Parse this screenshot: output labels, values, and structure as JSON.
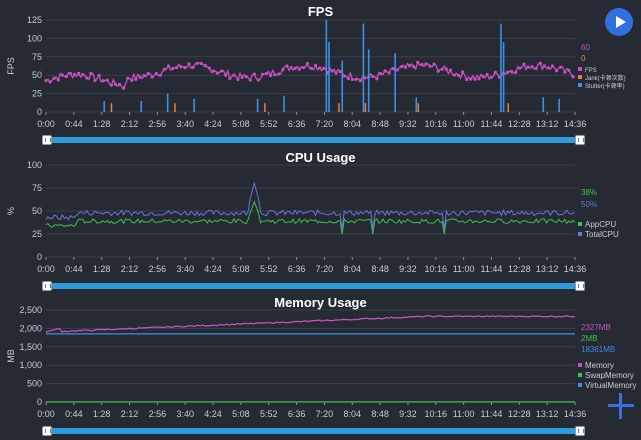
{
  "chart_data": [
    {
      "type": "line",
      "title": "FPS",
      "ylabel": "FPS",
      "ylim": [
        0,
        125
      ],
      "yticks": [
        0,
        25,
        50,
        75,
        100,
        125
      ],
      "x_tick_labels": [
        "0:00",
        "0:44",
        "1:28",
        "2:12",
        "2:56",
        "3:40",
        "4:24",
        "5:08",
        "5:52",
        "6:36",
        "7:20",
        "8:04",
        "8:48",
        "9:32",
        "10:16",
        "11:00",
        "11:44",
        "12:28",
        "13:12",
        "14:36"
      ],
      "grid": true,
      "legend_position": "right",
      "series": [
        {
          "name": "FPS",
          "color": "#c94fc0",
          "current": "60",
          "summary": "~55–65, wavy"
        },
        {
          "name": "Jank(卡顿次数)",
          "color": "#e8823a",
          "current": "0"
        },
        {
          "name": "Stutter(卡顿率)",
          "color": "#3e8fe8",
          "current": "",
          "spikes": [
            {
              "t": "7:35",
              "value": 125
            },
            {
              "t": "8:20",
              "value": 120
            },
            {
              "t": "9:45",
              "value": 80
            },
            {
              "t": "12:40",
              "value": 120
            },
            {
              "t": "8:00",
              "value": 60
            }
          ]
        }
      ],
      "current_labels": [
        "60",
        "0"
      ]
    },
    {
      "type": "line",
      "title": "CPU Usage",
      "ylabel": "%",
      "ylim": [
        0,
        100
      ],
      "yticks": [
        0,
        25,
        50,
        75,
        100
      ],
      "x_tick_labels": [
        "0:00",
        "0:44",
        "1:28",
        "2:12",
        "2:56",
        "3:40",
        "4:24",
        "5:08",
        "5:52",
        "6:36",
        "7:20",
        "8:04",
        "8:48",
        "9:32",
        "10:16",
        "11:00",
        "11:44",
        "12:28",
        "13:12",
        "14:36"
      ],
      "grid": true,
      "legend_position": "right",
      "series": [
        {
          "name": "AppCPU",
          "color": "#3cc24a",
          "current": "38%"
        },
        {
          "name": "TotalCPU",
          "color": "#6a73e0",
          "current": "50%"
        }
      ]
    },
    {
      "type": "line",
      "title": "Memory Usage",
      "ylabel": "MB",
      "ylim": [
        0,
        2500
      ],
      "yticks": [
        0,
        500,
        1000,
        1500,
        2000,
        2500
      ],
      "ytick_labels": [
        "0",
        "500",
        "1,000",
        "1,500",
        "2,000",
        "2,500"
      ],
      "x_tick_labels": [
        "0:00",
        "0:44",
        "1:28",
        "2:12",
        "2:56",
        "3:40",
        "4:24",
        "5:08",
        "5:52",
        "6:36",
        "7:20",
        "8:04",
        "8:48",
        "9:32",
        "10:16",
        "11:00",
        "11:44",
        "12:28",
        "13:12",
        "14:36"
      ],
      "grid": true,
      "legend_position": "right",
      "series": [
        {
          "name": "Memory",
          "color": "#c94fc0",
          "current": "2327MB",
          "start": 1900,
          "end": 2327
        },
        {
          "name": "SwapMemory",
          "color": "#3cc24a",
          "current": "2MB",
          "value": 2
        },
        {
          "name": "VirtualMemory",
          "color": "#3e8fe8",
          "current": "18361MB"
        }
      ]
    }
  ],
  "ui": {
    "play_button": "play",
    "add_button": "add",
    "colors": {
      "background": "#262a33",
      "accent": "#2e9bdb"
    }
  }
}
